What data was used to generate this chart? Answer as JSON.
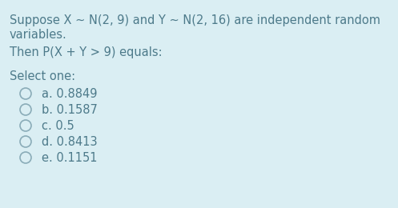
{
  "background_color": "#daeef3",
  "line1": "Suppose X ∼ N(2, 9) and Y ∼ N(2, 16) are independent random",
  "line2": "variables.",
  "line3": "Then P(X + Y > 9) equals:",
  "select_label": "Select one:",
  "options": [
    "a. 0.8849",
    "b. 0.1587",
    "c. 0.5",
    "d. 0.8413",
    "e. 0.1151"
  ],
  "text_color": "#4d7a8a",
  "font_size": 10.5,
  "fig_width": 4.97,
  "fig_height": 2.6,
  "dpi": 100
}
